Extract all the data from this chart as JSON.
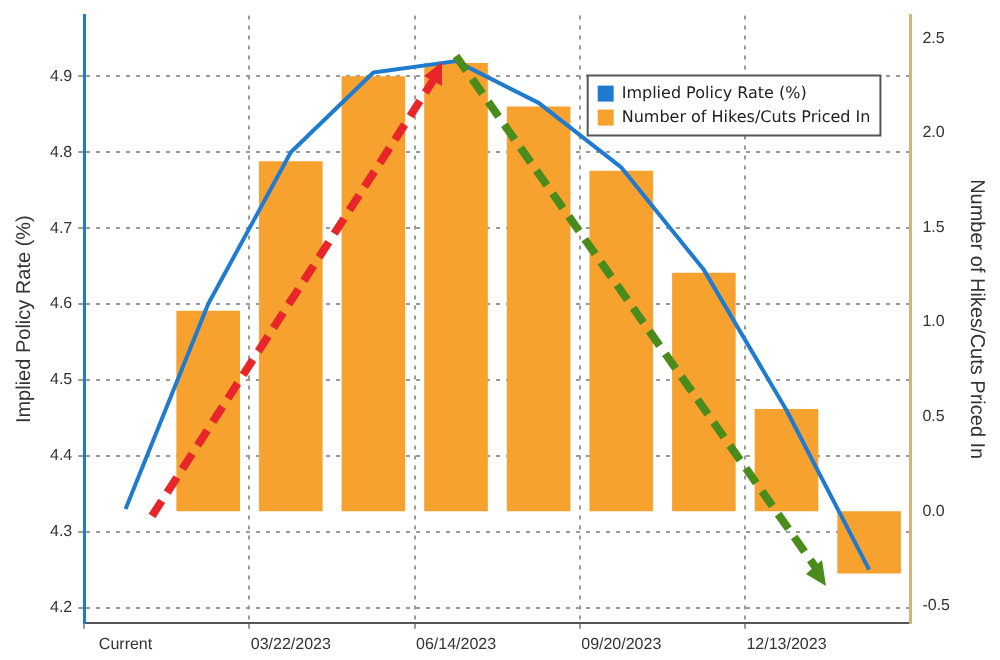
{
  "chart_data": {
    "type": "bar",
    "xlabel": null,
    "ylabel": "Implied Policy Rate (%)",
    "y2label": "Number of Hikes/Cuts Priced In",
    "categories": [
      "Current",
      null,
      "03/22/2023",
      null,
      "06/14/2023",
      null,
      "09/20/2023",
      null,
      "12/13/2023",
      null
    ],
    "series": [
      {
        "name": "Implied Policy Rate (%)",
        "type": "line",
        "color": "#1f7bd0",
        "values": [
          4.33,
          4.6,
          4.8,
          4.905,
          4.92,
          4.865,
          4.78,
          4.645,
          4.46,
          4.25
        ]
      },
      {
        "name": "Number of Hikes/Cuts Priced In",
        "axis": "y2",
        "color": "#f7a12f",
        "values": [
          0,
          1.06,
          1.85,
          2.3,
          2.37,
          2.14,
          1.8,
          1.26,
          0.54,
          -0.33
        ]
      }
    ],
    "ylim": [
      4.18,
      4.98
    ],
    "yticks": [
      4.2,
      4.3,
      4.4,
      4.5,
      4.6,
      4.7,
      4.8,
      4.9
    ],
    "y2lim": [
      -0.59,
      2.62
    ],
    "y2ticks": [
      -0.5,
      {
        "value": 0,
        "label": "0.0"
      },
      0.5,
      {
        "value": 1,
        "label": "1.0"
      },
      1.5,
      {
        "value": 2,
        "label": "2.0"
      },
      2.5
    ],
    "grid": true,
    "legend": "top right",
    "marker": "none"
  }
}
